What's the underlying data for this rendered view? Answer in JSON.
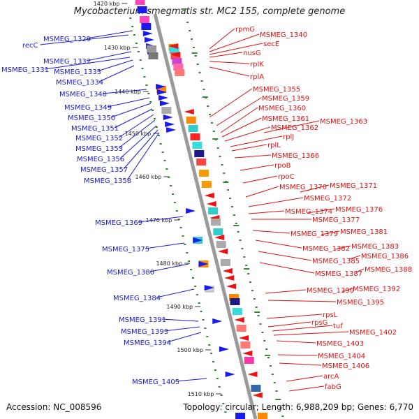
{
  "title": "Mycobacterium smegmatis str. MC2 155, complete genome",
  "footer": {
    "accession": "Accession: NC_008596",
    "topology": "Topology: circular; Length: 6,988,209 bp; Genes: 6,770"
  },
  "colors": {
    "left_label": "#1a1acc",
    "right_label": "#dd1111",
    "backbone": "#9a9a9a",
    "track_dots": "#2a8a2a",
    "gene_forward": "#1a1aee",
    "gene_reverse": "#ee1111"
  },
  "scale_ticks": [
    "1420 kbp",
    "1430 kbp",
    "1440 kbp",
    "1450 kbp",
    "1460 kbp",
    "1470 kbp",
    "1480 kbp",
    "1490 kbp",
    "1500 kbp",
    "1510 kbp"
  ],
  "left_labels": [
    "recC",
    "MSMEG_1329",
    "MSMEG_1331",
    "MSMEG_1332",
    "MSMEG_1333",
    "MSMEG_1334",
    "MSMEG_1348",
    "MSMEG_1349",
    "MSMEG_1350",
    "MSMEG_1351",
    "MSMEG_1352",
    "MSMEG_1353",
    "MSMEG_1356",
    "MSMEG_1357",
    "MSMEG_1358",
    "MSMEG_1369",
    "MSMEG_1375",
    "MSMEG_1380",
    "MSMEG_1384",
    "MSMEG_1391",
    "MSMEG_1393",
    "MSMEG_1394",
    "MSMEG_1405"
  ],
  "right_labels": [
    "rpmG",
    "MSMEG_1340",
    "secE",
    "nusG",
    "rplK",
    "rplA",
    "MSMEG_1355",
    "MSMEG_1359",
    "MSMEG_1360",
    "MSMEG_1361",
    "MSMEG_1362",
    "MSMEG_1363",
    "rplJ",
    "rplL",
    "MSMEG_1366",
    "rpoB",
    "rpoC",
    "MSMEG_1370",
    "MSMEG_1371",
    "MSMEG_1372",
    "MSMEG_1374",
    "MSMEG_1376",
    "MSMEG_1377",
    "MSMEG_1379",
    "MSMEG_1381",
    "MSMEG_1382",
    "MSMEG_1383",
    "MSMEG_1385",
    "MSMEG_1386",
    "MSMEG_1387",
    "MSMEG_1388",
    "MSMEG_1390",
    "MSMEG_1392",
    "MSMEG_1395",
    "rpsL",
    "rpsG",
    "tuf",
    "MSMEG_1402",
    "MSMEG_1403",
    "MSMEG_1404",
    "MSMEG_1406",
    "arcA",
    "fabG"
  ]
}
